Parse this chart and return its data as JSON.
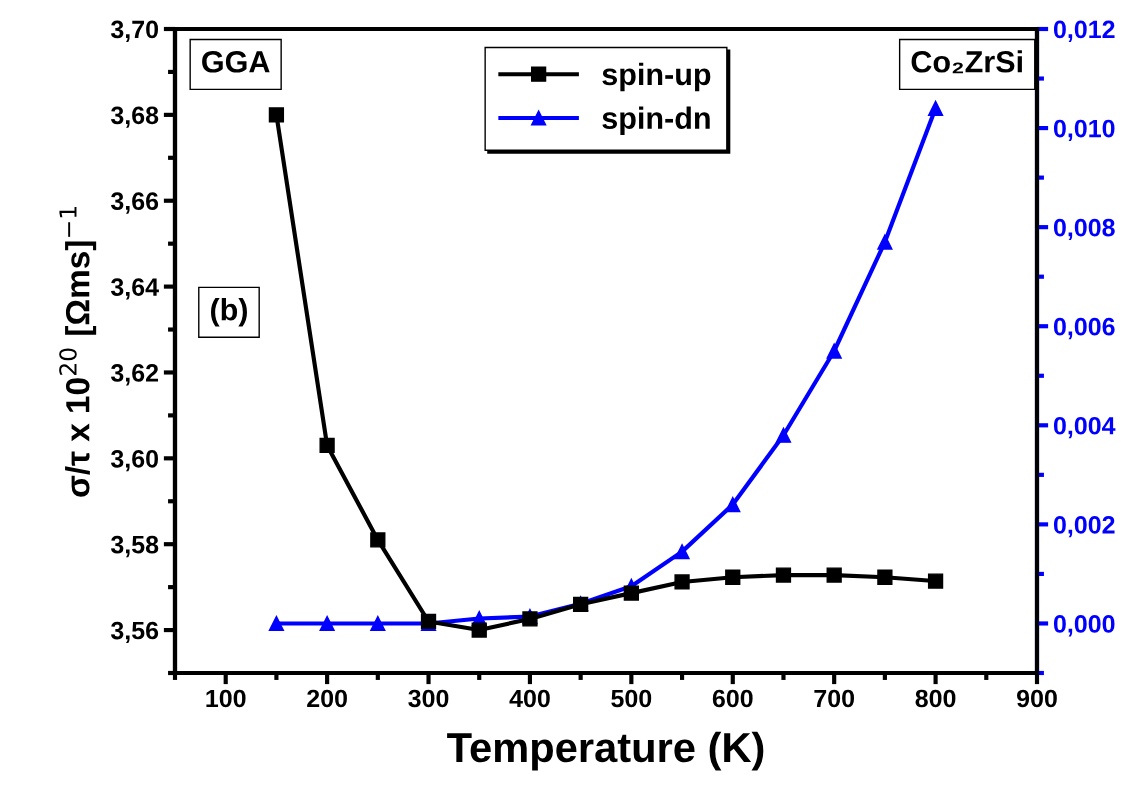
{
  "chart_data": {
    "type": "line",
    "xlabel": "Temperature (K)",
    "ylabel": "σ/τ x 10$^{20}$ [Ωms]$^{−1}$",
    "x": [
      150,
      200,
      250,
      300,
      350,
      400,
      450,
      500,
      550,
      600,
      650,
      700,
      750,
      800
    ],
    "series": [
      {
        "name": "spin-up",
        "color": "#000000",
        "marker": "square",
        "values": [
          3.68,
          3.603,
          3.581,
          3.562,
          3.56,
          3.5626,
          3.566,
          3.5686,
          3.5712,
          3.5723,
          3.5728,
          3.5728,
          3.5723,
          3.5714
        ]
      },
      {
        "name": "spin-dn",
        "color": "#0000ff",
        "marker": "triangle",
        "axis": "y2",
        "values": [
          0,
          0,
          0,
          0,
          0.0001,
          0.00014,
          0.0004,
          0.00075,
          0.00145,
          0.0024,
          0.0038,
          0.0055,
          0.0077,
          0.0104
        ]
      }
    ],
    "xlim": [
      50,
      900
    ],
    "xticks": [
      100,
      200,
      300,
      400,
      500,
      600,
      700,
      800,
      900
    ],
    "ylim": [
      3.55,
      3.7
    ],
    "yticks": [
      {
        "value": 3.56,
        "label": "3,56"
      },
      {
        "value": 3.58,
        "label": "3,58"
      },
      {
        "value": 3.6,
        "label": "3,60"
      },
      {
        "value": 3.62,
        "label": "3,62"
      },
      {
        "value": 3.64,
        "label": "3,64"
      },
      {
        "value": 3.66,
        "label": "3,66"
      },
      {
        "value": 3.68,
        "label": "3,68"
      },
      {
        "value": 3.7,
        "label": "3,70"
      }
    ],
    "y2lim": [
      -0.001,
      0.012
    ],
    "y2ticks": [
      {
        "value": 0,
        "label": "0,000"
      },
      {
        "value": 0.002,
        "label": "0,002"
      },
      {
        "value": 0.004,
        "label": "0,004"
      },
      {
        "value": 0.006,
        "label": "0,006"
      },
      {
        "value": 0.008,
        "label": "0,008"
      },
      {
        "value": 0.01,
        "label": "0,010"
      },
      {
        "value": 0.012,
        "label": "0,012"
      }
    ],
    "annotations": [
      "GGA",
      "(b)",
      "Co₂ZrSi"
    ],
    "legend": "top",
    "grid": false,
    "line_style": "solid"
  }
}
